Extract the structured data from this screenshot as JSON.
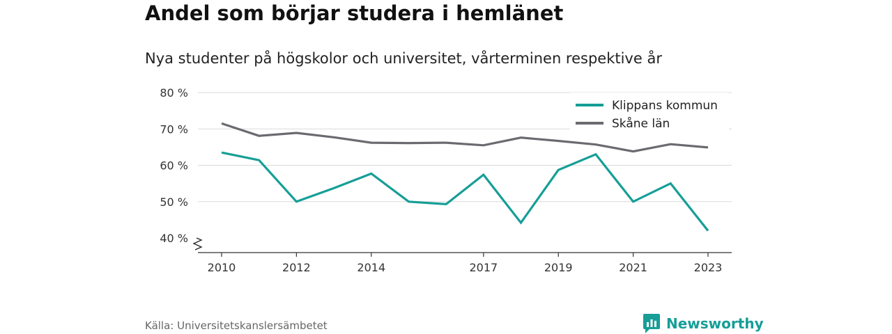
{
  "header": {
    "title": "Andel som börjar studera i hemlänet",
    "subtitle": "Nya studenter på högskolor och universitet, vårterminen respektive år"
  },
  "footer": {
    "source": "Källa: Universitetskanslersämbetet",
    "brand": "Newsworthy",
    "brand_icon": "newsworthy-logo-icon",
    "brand_color": "#169e97"
  },
  "chart_data": {
    "type": "line",
    "x": [
      2010,
      2011,
      2012,
      2013,
      2014,
      2015,
      2016,
      2017,
      2018,
      2019,
      2020,
      2021,
      2022,
      2023
    ],
    "x_ticks": [
      "2010",
      "2012",
      "2014",
      "2017",
      "2019",
      "2021",
      "2023"
    ],
    "ylim": [
      40,
      80
    ],
    "y_ticks": [
      "40 %",
      "50 %",
      "60 %",
      "70 %",
      "80 %"
    ],
    "y_axis_broken": true,
    "grid": true,
    "legend_position": "top-right",
    "series": [
      {
        "name": "Klippans kommun",
        "color": "#169e97",
        "values": [
          63.5,
          61.4,
          50.0,
          53.7,
          57.7,
          50.0,
          49.3,
          57.4,
          44.2,
          58.7,
          63.0,
          50.0,
          55.0,
          42.0
        ]
      },
      {
        "name": "Skåne län",
        "color": "#6b6a70",
        "values": [
          71.5,
          68.1,
          68.9,
          67.7,
          66.2,
          66.1,
          66.2,
          65.5,
          67.6,
          66.7,
          65.7,
          63.8,
          65.8,
          64.9
        ]
      }
    ]
  }
}
